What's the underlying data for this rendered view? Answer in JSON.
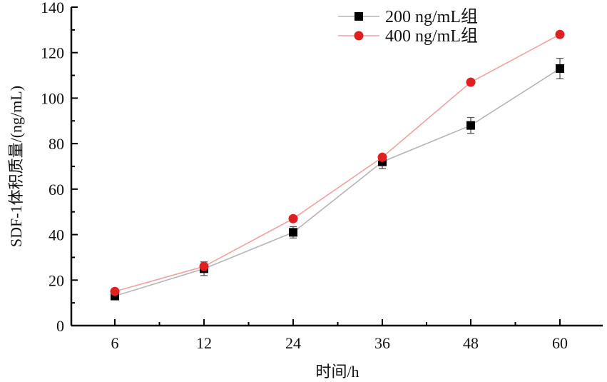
{
  "chart_data": {
    "type": "line",
    "title": "",
    "xlabel": "时间/h",
    "ylabel": "SDF-1体积质量/(ng/mL)",
    "categories": [
      "6",
      "12",
      "24",
      "36",
      "48",
      "60"
    ],
    "ylim": [
      0,
      140
    ],
    "yticks": [
      0,
      20,
      40,
      60,
      80,
      100,
      120,
      140
    ],
    "grid": false,
    "legend_position": "top-right",
    "series": [
      {
        "name": "200 ng/mL组",
        "color": "#000000",
        "line_color": "#b5b5b5",
        "marker": "square",
        "values": [
          13,
          25,
          41,
          72,
          88,
          113
        ],
        "errors": [
          1.0,
          3.0,
          2.5,
          3.0,
          3.5,
          4.5
        ]
      },
      {
        "name": "400 ng/mL组",
        "color": "#e02020",
        "line_color": "#f3a0a0",
        "marker": "circle",
        "values": [
          15,
          26,
          47,
          74,
          107,
          128
        ],
        "errors": [
          0.5,
          1.0,
          1.0,
          1.0,
          1.0,
          1.0
        ]
      }
    ]
  }
}
